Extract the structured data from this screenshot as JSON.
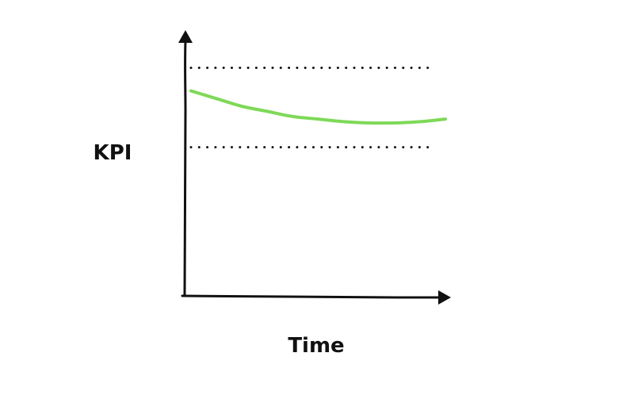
{
  "chart_data": {
    "type": "line",
    "xlabel": "Time",
    "ylabel": "KPI",
    "xlim": [
      0,
      10
    ],
    "ylim": [
      0,
      10
    ],
    "grid": false,
    "reference_lines": [
      {
        "y": 8.9,
        "style": "dotted"
      },
      {
        "y": 5.8,
        "style": "dotted"
      }
    ],
    "series": [
      {
        "x": [
          0,
          1,
          2,
          3,
          4,
          5,
          6,
          7,
          8,
          9,
          10
        ],
        "y": [
          8.0,
          7.7,
          7.4,
          7.2,
          7.0,
          6.9,
          6.8,
          6.75,
          6.75,
          6.8,
          6.9
        ],
        "color": "#7ed957"
      }
    ],
    "colors": {
      "axis": "#111111",
      "dots": "#111111",
      "line": "#7ed957"
    }
  }
}
